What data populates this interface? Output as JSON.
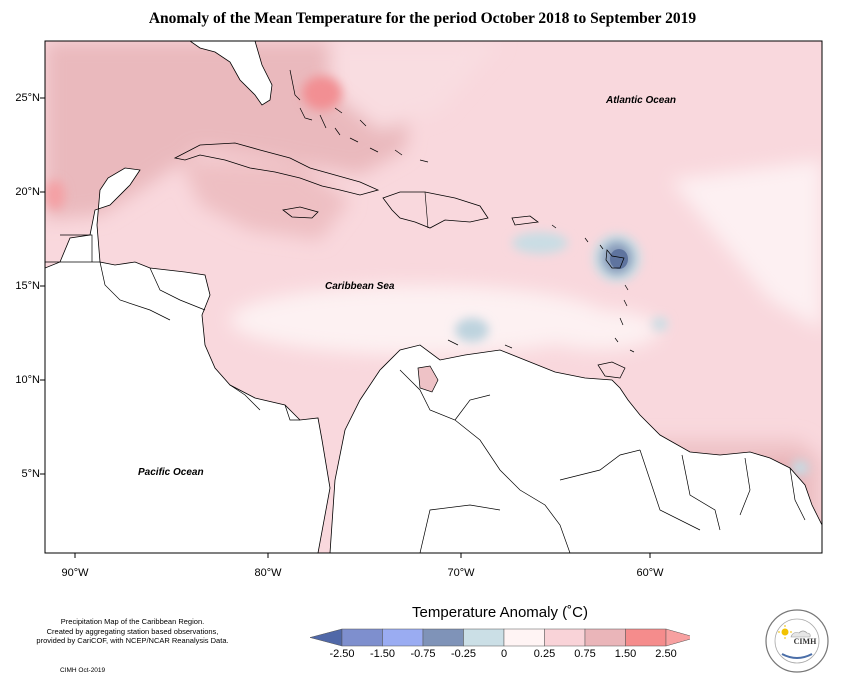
{
  "title": "Anomaly of the Mean Temperature for the period October 2018 to September 2019",
  "axes": {
    "y_labels": [
      "25°N",
      "20°N",
      "15°N",
      "10°N",
      "5°N"
    ],
    "x_labels": [
      "90°W",
      "80°W",
      "70°W",
      "60°W"
    ]
  },
  "regions": {
    "atlantic": "Atlantic Ocean",
    "caribbean": "Caribbean Sea",
    "pacific": "Pacific Ocean"
  },
  "legend": {
    "title": "Temperature Anomaly (˚C)",
    "labels": [
      "-2.50",
      "-1.50",
      "-0.75",
      "-0.25",
      "0",
      "0.25",
      "0.75",
      "1.50",
      "2.50"
    ],
    "colors": [
      "#5068a8",
      "#7e8fce",
      "#9aacf2",
      "#7f93b8",
      "#cbdfe6",
      "#fff4f4",
      "#f9d3d8",
      "#eab5b9",
      "#f58c8c",
      "#f7a0a0"
    ]
  },
  "footer": {
    "note_lines": [
      "Precipitation Map of the Caribbean Region.",
      "Created by aggregating station based observations,",
      "provided by CariCOF, with NCEP/NCAR Reanalysis Data."
    ],
    "credit": "CIMH Oct-2019"
  },
  "logo": {
    "text": "CIMH"
  }
}
